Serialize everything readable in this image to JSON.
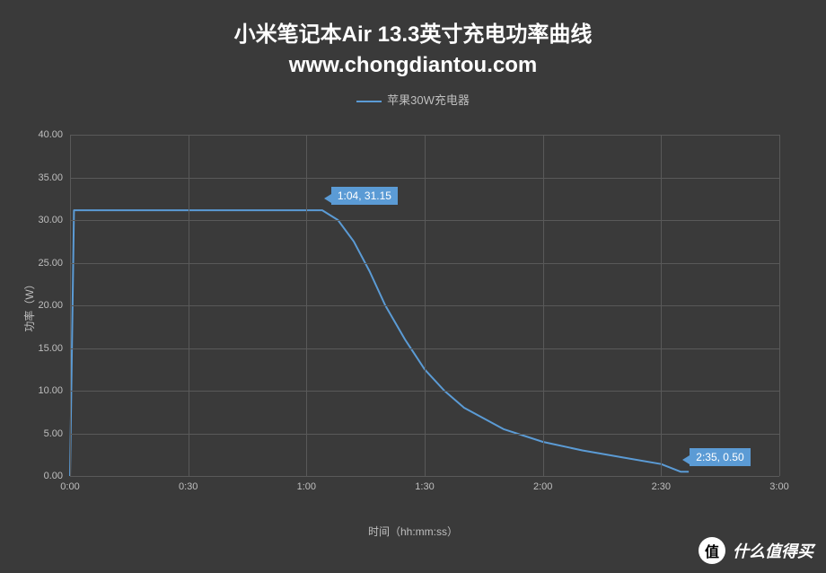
{
  "title": {
    "line1": "小米笔记本Air 13.3英寸充电功率曲线",
    "line2": "www.chongdiantou.com",
    "color": "#ffffff",
    "fontsize": 24
  },
  "legend": {
    "label": "苹果30W充电器",
    "color": "#5b9bd5",
    "text_color": "#bfbfbf",
    "fontsize": 13
  },
  "chart": {
    "type": "line",
    "background_color": "#3a3a3a",
    "grid_color": "#595959",
    "axis_text_color": "#bfbfbf",
    "line_color": "#5b9bd5",
    "line_width": 2,
    "y_axis": {
      "label": "功率（W）",
      "min": 0,
      "max": 40,
      "tick_step": 5,
      "ticks": [
        "0.00",
        "5.00",
        "10.00",
        "15.00",
        "20.00",
        "25.00",
        "30.00",
        "35.00",
        "40.00"
      ],
      "label_fontsize": 12,
      "tick_fontsize": 11
    },
    "x_axis": {
      "label": "时间（hh:mm:ss）",
      "min_minutes": 0,
      "max_minutes": 180,
      "tick_step_minutes": 30,
      "ticks": [
        "0:00",
        "0:30",
        "1:00",
        "1:30",
        "2:00",
        "2:30",
        "3:00"
      ],
      "label_fontsize": 12,
      "tick_fontsize": 11
    },
    "series": [
      {
        "name": "苹果30W充电器",
        "color": "#5b9bd5",
        "points_minutes_power": [
          [
            0,
            0.0
          ],
          [
            1,
            31.15
          ],
          [
            64,
            31.15
          ],
          [
            68,
            30.0
          ],
          [
            72,
            27.5
          ],
          [
            76,
            24.0
          ],
          [
            80,
            20.0
          ],
          [
            85,
            16.0
          ],
          [
            90,
            12.5
          ],
          [
            95,
            10.0
          ],
          [
            100,
            8.0
          ],
          [
            110,
            5.5
          ],
          [
            120,
            4.0
          ],
          [
            130,
            3.0
          ],
          [
            140,
            2.2
          ],
          [
            150,
            1.4
          ],
          [
            155,
            0.5
          ],
          [
            157,
            0.5
          ]
        ]
      }
    ],
    "callouts": [
      {
        "text": "1:04, 31.15",
        "x_minutes": 64,
        "y_power": 31.15,
        "bg": "#5b9bd5",
        "fg": "#ffffff"
      },
      {
        "text": "2:35, 0.50",
        "x_minutes": 155,
        "y_power": 0.5,
        "bg": "#5b9bd5",
        "fg": "#ffffff"
      }
    ]
  },
  "watermark": {
    "badge_text": "值",
    "text": "什么值得买",
    "badge_bg": "#ffffff",
    "badge_fg": "#000000",
    "text_color": "#ffffff"
  }
}
